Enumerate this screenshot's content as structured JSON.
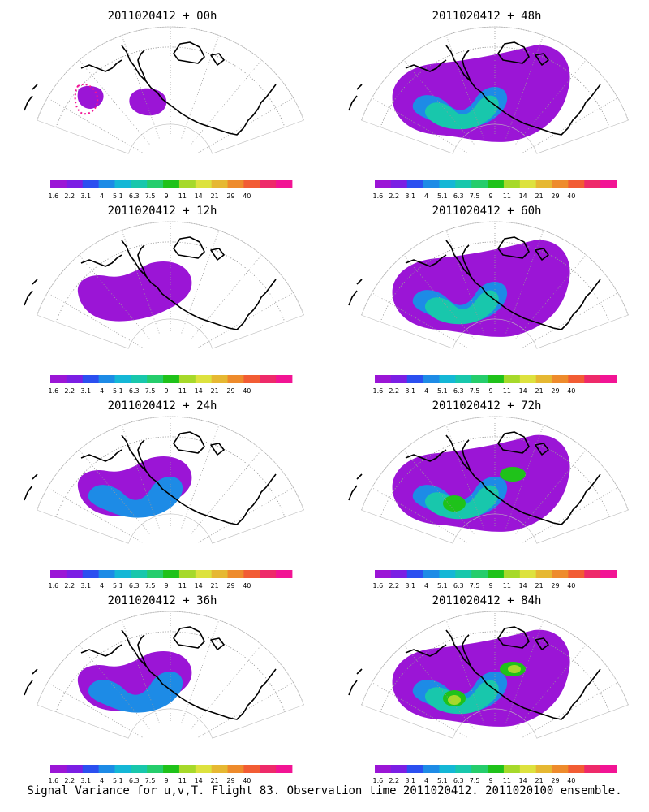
{
  "figure": {
    "caption": "Signal Variance for u,v,T. Flight 83. Observation time 2011020412. 2011020100 ensemble."
  },
  "colorbar": {
    "colors": [
      "#9b15d6",
      "#7b1ee4",
      "#2b4ff0",
      "#1d8be6",
      "#14b7d6",
      "#18c7ac",
      "#25cd6c",
      "#1fc21a",
      "#a6d92a",
      "#dde23e",
      "#e6b832",
      "#ee8b2c",
      "#f25c34",
      "#ee2a6a",
      "#f21494"
    ],
    "labels": [
      "1.6",
      "2.2",
      "3.1",
      "4",
      "5.1",
      "6.3",
      "7.5",
      "9",
      "11",
      "14",
      "21",
      "29",
      "40"
    ]
  },
  "panels": [
    {
      "title": "2011020412 + 00h",
      "variance_level": 0
    },
    {
      "title": "2011020412 + 48h",
      "variance_level": 3
    },
    {
      "title": "2011020412 + 12h",
      "variance_level": 1
    },
    {
      "title": "2011020412 + 60h",
      "variance_level": 3
    },
    {
      "title": "2011020412 + 24h",
      "variance_level": 2
    },
    {
      "title": "2011020412 + 72h",
      "variance_level": 4
    },
    {
      "title": "2011020412 + 36h",
      "variance_level": 2
    },
    {
      "title": "2011020412 + 84h",
      "variance_level": 5
    }
  ]
}
